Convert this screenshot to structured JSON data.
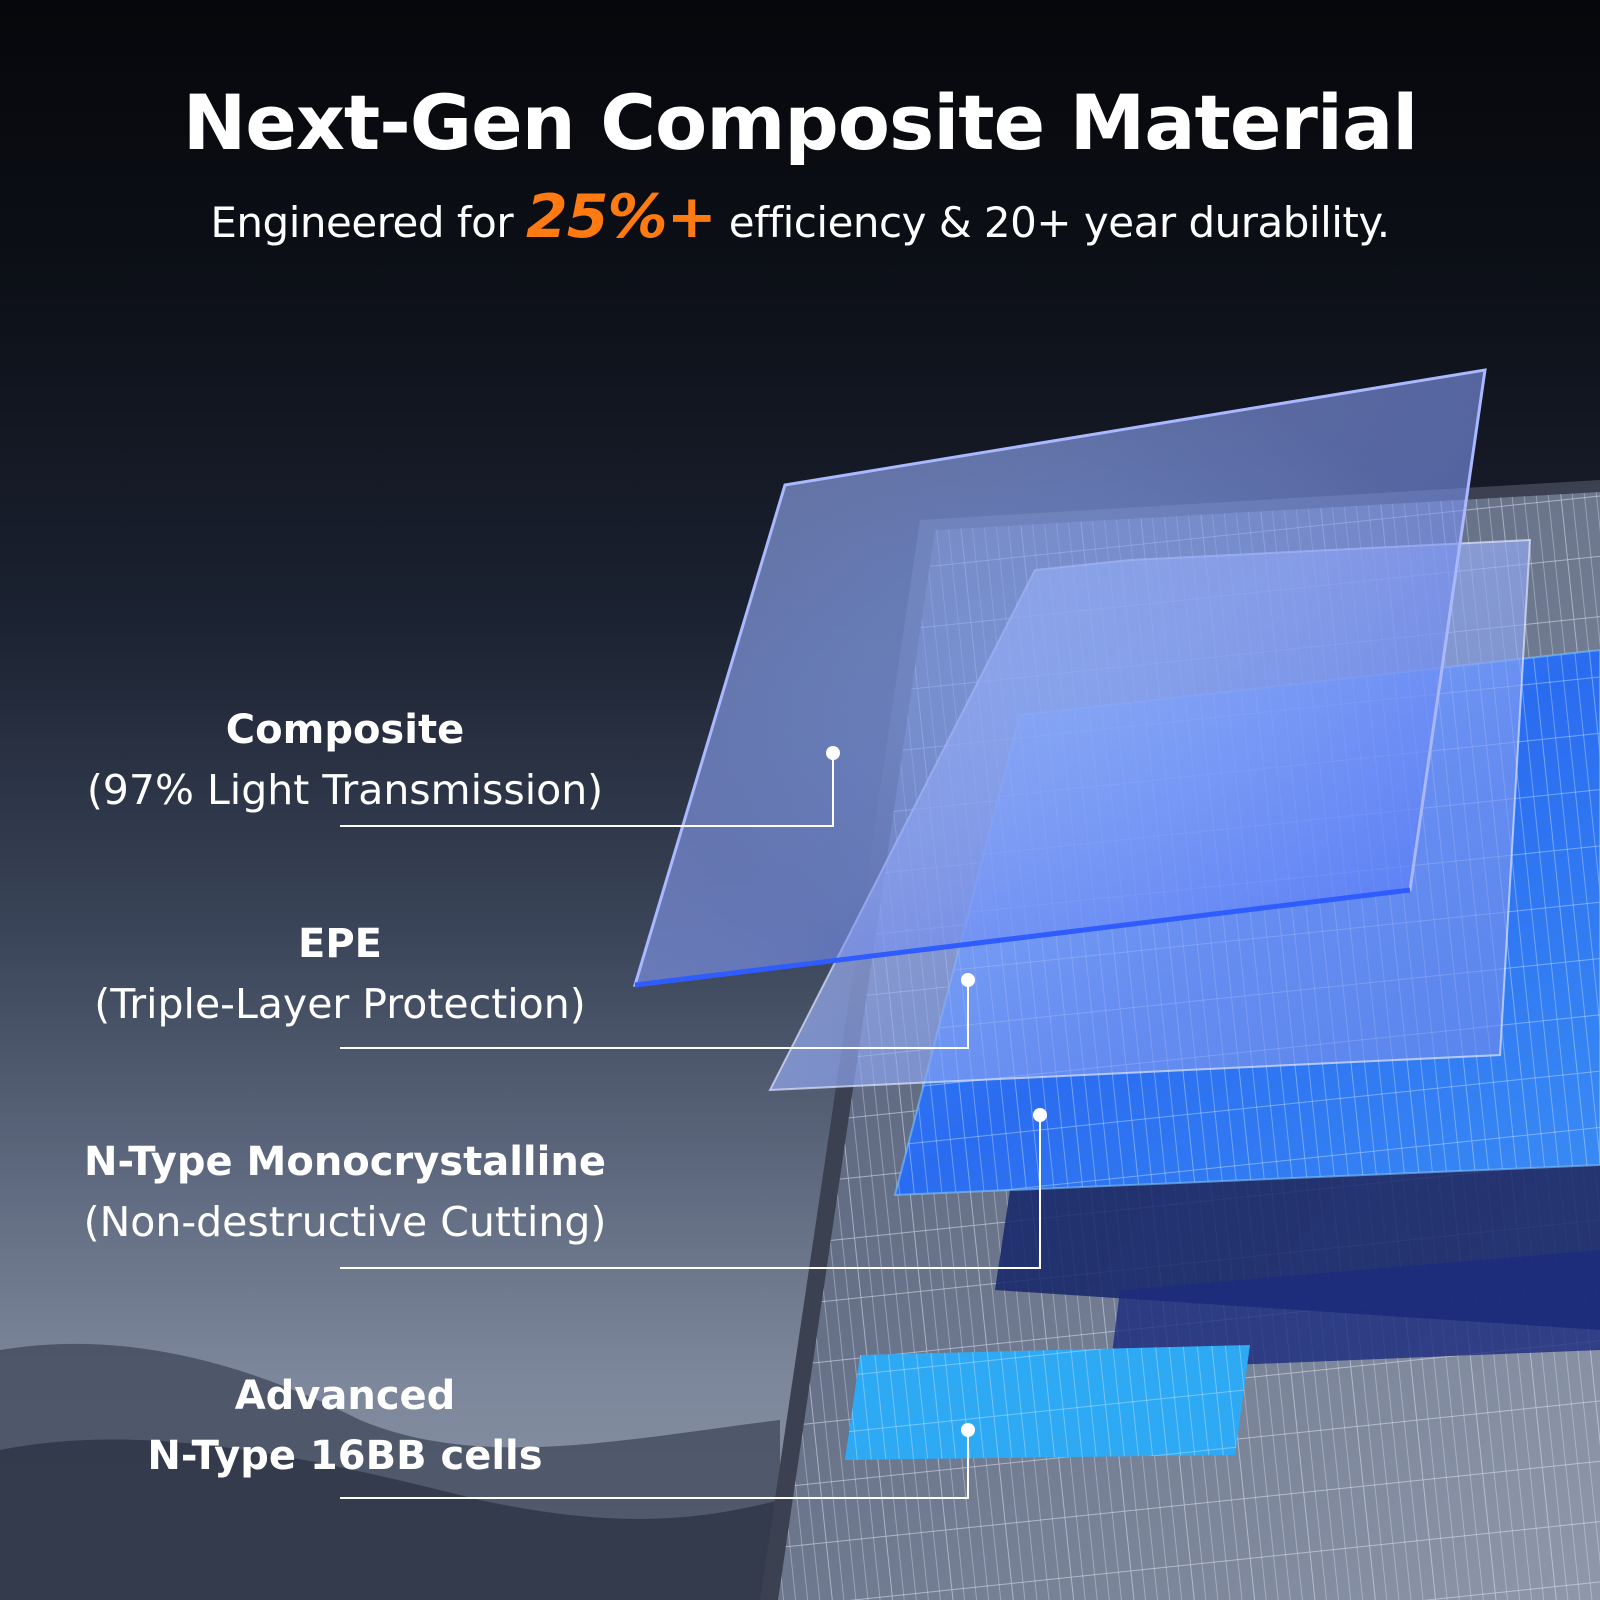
{
  "header": {
    "title": "Next-Gen Composite Material",
    "subtitle_prefix": "Engineered for ",
    "subtitle_highlight": "25%+",
    "subtitle_suffix": " efficiency & 20+ year durability."
  },
  "colors": {
    "accent": "#ff7a10",
    "text": "#ffffff"
  },
  "layers": [
    {
      "title": "Composite",
      "subtitle": "(97% Light Transmission)"
    },
    {
      "title": "EPE",
      "subtitle": "(Triple-Layer Protection)"
    },
    {
      "title": "N-Type Monocrystalline",
      "subtitle": "(Non-destructive Cutting)"
    },
    {
      "title": "Advanced",
      "subtitle": "N-Type 16BB cells"
    }
  ]
}
